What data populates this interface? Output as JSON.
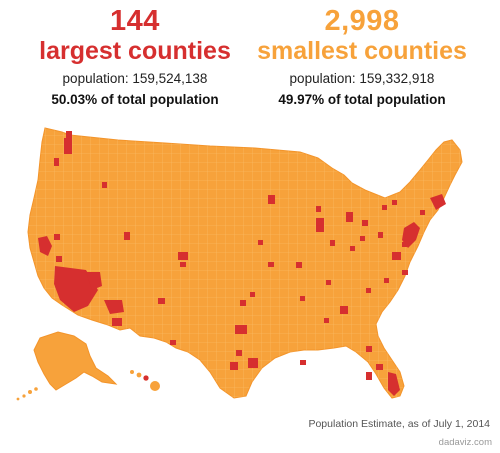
{
  "largest": {
    "count": "144",
    "label": "largest counties",
    "population": "population: 159,524,138",
    "percent": "50.03% of total population"
  },
  "smallest": {
    "count": "2,998",
    "label": "smallest counties",
    "population": "population: 159,332,918",
    "percent": "49.97% of total population"
  },
  "map": {
    "colors": {
      "largest": "#d62f2f",
      "smallest": "#f7a23b"
    }
  },
  "footnote": "Population Estimate, as of July 1, 2014",
  "credit": "dadaviz.com"
}
